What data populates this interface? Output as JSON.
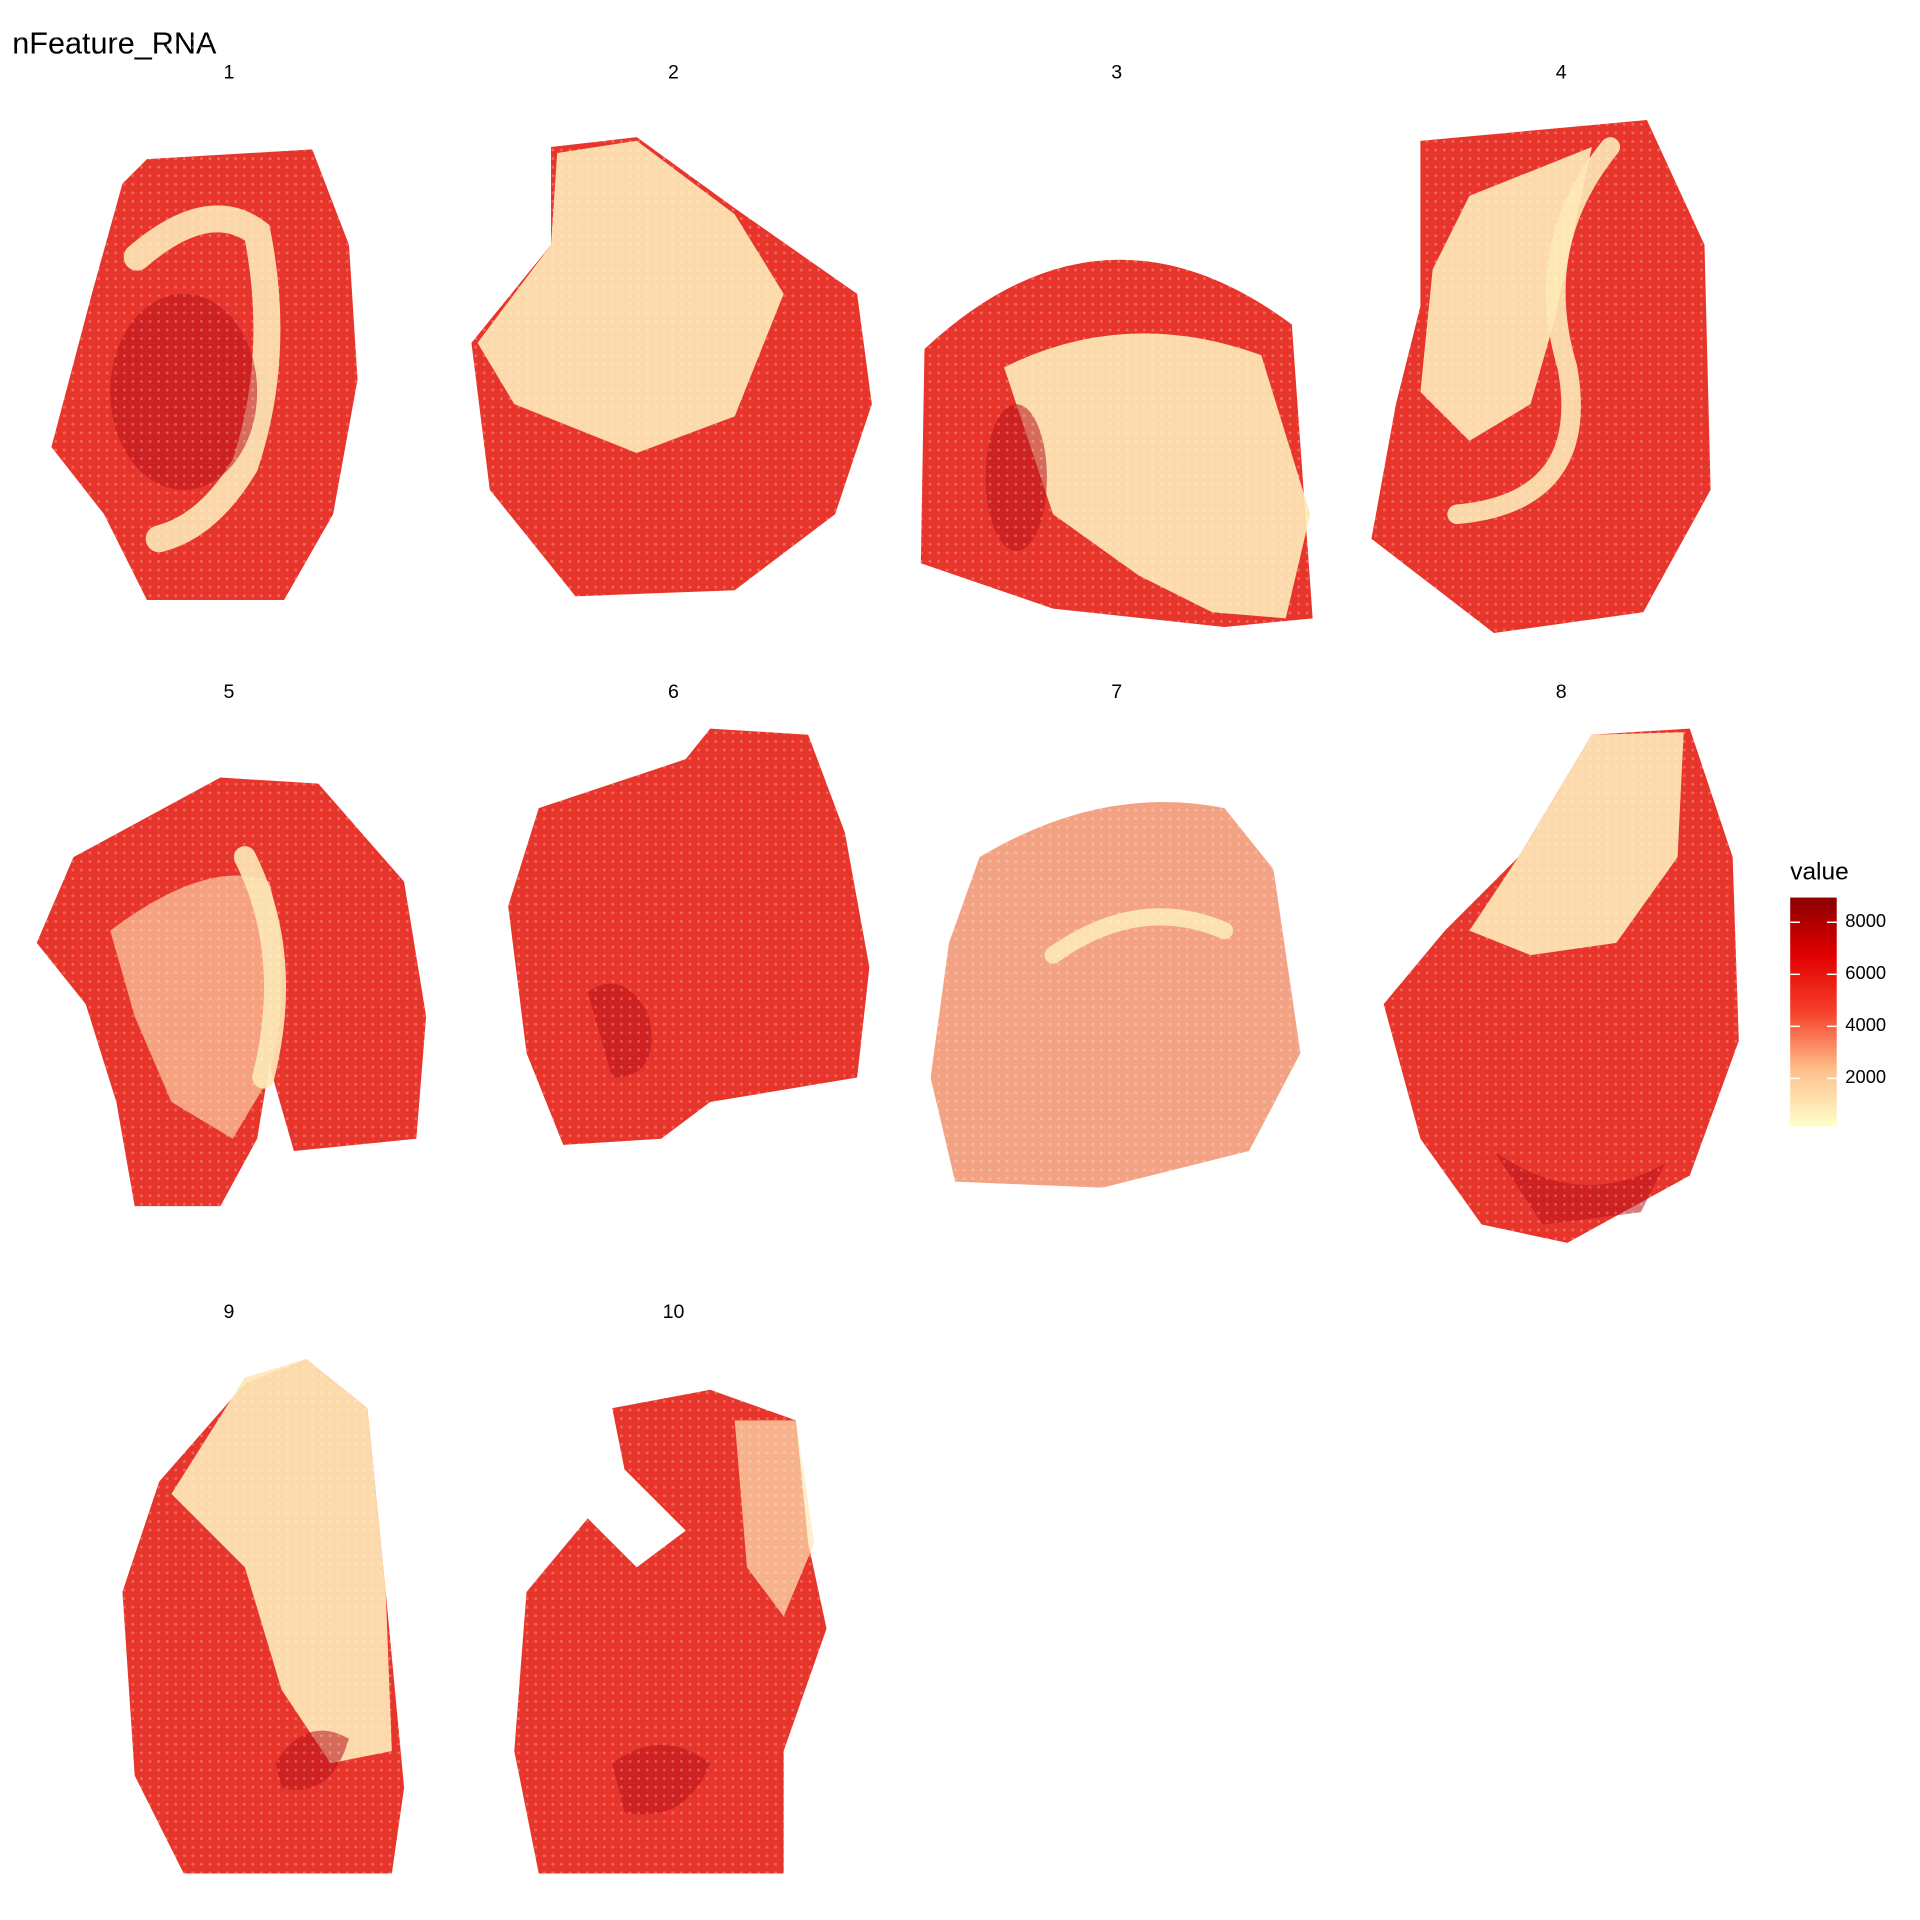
{
  "chart_data": {
    "type": "spatial-feature",
    "title": "nFeature_RNA",
    "panels": [
      "1",
      "2",
      "3",
      "4",
      "5",
      "6",
      "7",
      "8",
      "9",
      "10"
    ],
    "legend_title": "value",
    "colorbar": {
      "lim": [
        150,
        8950
      ],
      "ticks": [
        2000,
        4000,
        6000,
        8000
      ],
      "colors": [
        "#ffffcc",
        "#fdbf8a",
        "#f6402a",
        "#e00000",
        "#8b0000"
      ]
    }
  }
}
